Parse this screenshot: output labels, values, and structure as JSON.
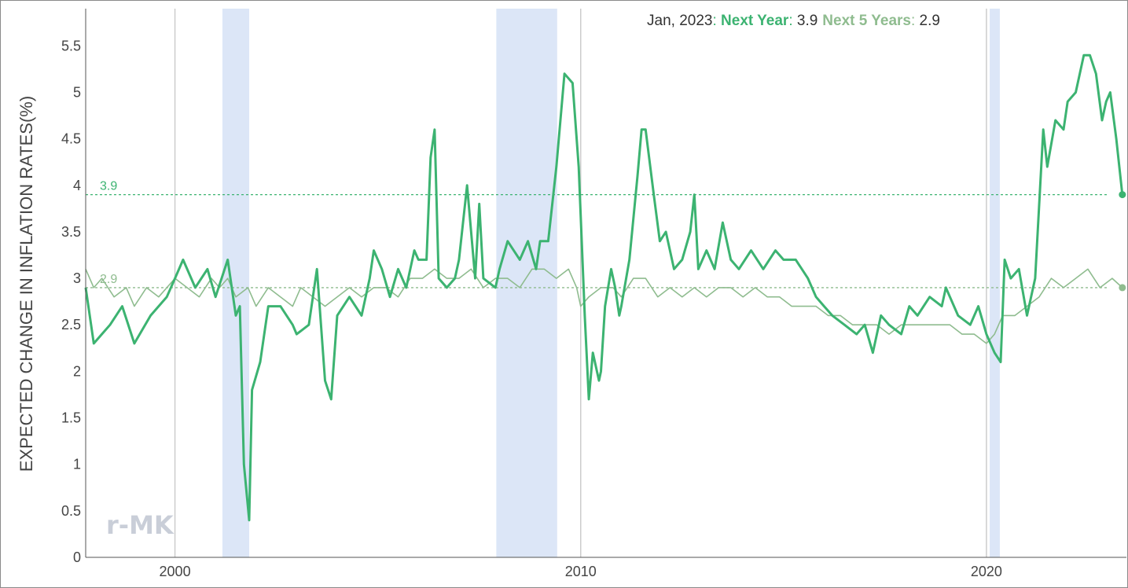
{
  "chart_data": {
    "type": "line",
    "ylabel": "EXPECTED CHANGE IN INFLATION RATES(%)",
    "ylim": [
      0,
      5.9
    ],
    "yticks": [
      "0",
      "0.5",
      "1",
      "1.5",
      "2",
      "2.5",
      "3",
      "3.5",
      "4",
      "4.5",
      "5",
      "5.5"
    ],
    "xlim": [
      1997.8,
      2023.45
    ],
    "xticks": [
      {
        "value": 2000,
        "label": "2000"
      },
      {
        "value": 2010,
        "label": "2010"
      },
      {
        "value": 2020,
        "label": "2020"
      }
    ],
    "recessions": [
      [
        2001.17,
        2001.83
      ],
      [
        2007.92,
        2009.42
      ],
      [
        2020.08,
        2020.33
      ]
    ],
    "header": {
      "date": "Jan, 2023",
      "sep1": ": ",
      "s1_name": "Next Year",
      "s1_sep": ": ",
      "s1_value": "3.9",
      "s2_name": "Next 5 Years",
      "s2_sep": ": ",
      "s2_value": "2.9"
    },
    "reference_lines": [
      {
        "value": 3.9,
        "label": "3.9",
        "color": "#3cb371"
      },
      {
        "value": 2.9,
        "label": "2.9",
        "color": "#8fbc8f"
      }
    ],
    "series": [
      {
        "name": "Next Year",
        "color": "#3cb371",
        "points": [
          [
            1997.8,
            2.9
          ],
          [
            1998.0,
            2.3
          ],
          [
            1998.4,
            2.5
          ],
          [
            1998.7,
            2.7
          ],
          [
            1999.0,
            2.3
          ],
          [
            1999.4,
            2.6
          ],
          [
            1999.8,
            2.8
          ],
          [
            2000.0,
            3.0
          ],
          [
            2000.2,
            3.2
          ],
          [
            2000.5,
            2.9
          ],
          [
            2000.8,
            3.1
          ],
          [
            2001.0,
            2.8
          ],
          [
            2001.3,
            3.2
          ],
          [
            2001.5,
            2.6
          ],
          [
            2001.6,
            2.7
          ],
          [
            2001.7,
            1.0
          ],
          [
            2001.83,
            0.4
          ],
          [
            2001.9,
            1.8
          ],
          [
            2002.1,
            2.1
          ],
          [
            2002.3,
            2.7
          ],
          [
            2002.6,
            2.7
          ],
          [
            2002.9,
            2.5
          ],
          [
            2003.0,
            2.4
          ],
          [
            2003.3,
            2.5
          ],
          [
            2003.5,
            3.1
          ],
          [
            2003.7,
            1.9
          ],
          [
            2003.85,
            1.7
          ],
          [
            2004.0,
            2.6
          ],
          [
            2004.3,
            2.8
          ],
          [
            2004.6,
            2.6
          ],
          [
            2004.8,
            3.0
          ],
          [
            2004.9,
            3.3
          ],
          [
            2005.1,
            3.1
          ],
          [
            2005.3,
            2.8
          ],
          [
            2005.5,
            3.1
          ],
          [
            2005.7,
            2.9
          ],
          [
            2005.9,
            3.3
          ],
          [
            2006.0,
            3.2
          ],
          [
            2006.2,
            3.2
          ],
          [
            2006.3,
            4.3
          ],
          [
            2006.4,
            4.6
          ],
          [
            2006.5,
            3.0
          ],
          [
            2006.7,
            2.9
          ],
          [
            2006.9,
            3.0
          ],
          [
            2007.0,
            3.2
          ],
          [
            2007.2,
            4.0
          ],
          [
            2007.4,
            3.0
          ],
          [
            2007.5,
            3.8
          ],
          [
            2007.6,
            3.0
          ],
          [
            2007.9,
            2.9
          ],
          [
            2008.0,
            3.1
          ],
          [
            2008.2,
            3.4
          ],
          [
            2008.5,
            3.2
          ],
          [
            2008.7,
            3.4
          ],
          [
            2008.9,
            3.1
          ],
          [
            2009.0,
            3.4
          ],
          [
            2009.2,
            3.4
          ],
          [
            2009.4,
            4.2
          ],
          [
            2009.6,
            5.2
          ],
          [
            2009.8,
            5.1
          ],
          [
            2009.95,
            4.2
          ],
          [
            2010.1,
            2.6
          ],
          [
            2010.2,
            1.7
          ],
          [
            2010.3,
            2.2
          ],
          [
            2010.45,
            1.9
          ],
          [
            2010.5,
            2.0
          ],
          [
            2010.6,
            2.7
          ],
          [
            2010.75,
            3.1
          ],
          [
            2010.85,
            2.9
          ],
          [
            2010.95,
            2.6
          ],
          [
            2011.0,
            2.7
          ],
          [
            2011.2,
            3.2
          ],
          [
            2011.4,
            4.1
          ],
          [
            2011.5,
            4.6
          ],
          [
            2011.6,
            4.6
          ],
          [
            2011.8,
            3.9
          ],
          [
            2011.95,
            3.4
          ],
          [
            2012.1,
            3.5
          ],
          [
            2012.3,
            3.1
          ],
          [
            2012.5,
            3.2
          ],
          [
            2012.7,
            3.5
          ],
          [
            2012.8,
            3.9
          ],
          [
            2012.9,
            3.1
          ],
          [
            2013.1,
            3.3
          ],
          [
            2013.3,
            3.1
          ],
          [
            2013.5,
            3.6
          ],
          [
            2013.7,
            3.2
          ],
          [
            2013.9,
            3.1
          ],
          [
            2014.2,
            3.3
          ],
          [
            2014.5,
            3.1
          ],
          [
            2014.8,
            3.3
          ],
          [
            2015.0,
            3.2
          ],
          [
            2015.3,
            3.2
          ],
          [
            2015.6,
            3.0
          ],
          [
            2015.8,
            2.8
          ],
          [
            2016.0,
            2.7
          ],
          [
            2016.2,
            2.6
          ],
          [
            2016.5,
            2.5
          ],
          [
            2016.8,
            2.4
          ],
          [
            2017.0,
            2.5
          ],
          [
            2017.2,
            2.2
          ],
          [
            2017.4,
            2.6
          ],
          [
            2017.6,
            2.5
          ],
          [
            2017.9,
            2.4
          ],
          [
            2018.1,
            2.7
          ],
          [
            2018.3,
            2.6
          ],
          [
            2018.6,
            2.8
          ],
          [
            2018.9,
            2.7
          ],
          [
            2019.0,
            2.9
          ],
          [
            2019.3,
            2.6
          ],
          [
            2019.6,
            2.5
          ],
          [
            2019.8,
            2.7
          ],
          [
            2020.0,
            2.4
          ],
          [
            2020.2,
            2.2
          ],
          [
            2020.35,
            2.1
          ],
          [
            2020.45,
            3.2
          ],
          [
            2020.6,
            3.0
          ],
          [
            2020.8,
            3.1
          ],
          [
            2021.0,
            2.6
          ],
          [
            2021.2,
            3.0
          ],
          [
            2021.4,
            4.6
          ],
          [
            2021.5,
            4.2
          ],
          [
            2021.7,
            4.7
          ],
          [
            2021.9,
            4.6
          ],
          [
            2022.0,
            4.9
          ],
          [
            2022.2,
            5.0
          ],
          [
            2022.4,
            5.4
          ],
          [
            2022.55,
            5.4
          ],
          [
            2022.7,
            5.2
          ],
          [
            2022.85,
            4.7
          ],
          [
            2022.95,
            4.9
          ],
          [
            2023.05,
            5.0
          ],
          [
            2023.2,
            4.5
          ],
          [
            2023.35,
            3.9
          ]
        ]
      },
      {
        "name": "Next 5 Years",
        "color": "#8fbc8f",
        "points": [
          [
            1997.8,
            3.1
          ],
          [
            1998.0,
            2.9
          ],
          [
            1998.2,
            3.0
          ],
          [
            1998.5,
            2.8
          ],
          [
            1998.8,
            2.9
          ],
          [
            1999.0,
            2.7
          ],
          [
            1999.3,
            2.9
          ],
          [
            1999.6,
            2.8
          ],
          [
            2000.0,
            3.0
          ],
          [
            2000.3,
            2.9
          ],
          [
            2000.6,
            2.8
          ],
          [
            2000.9,
            3.0
          ],
          [
            2001.1,
            2.9
          ],
          [
            2001.3,
            3.0
          ],
          [
            2001.5,
            2.8
          ],
          [
            2001.8,
            2.9
          ],
          [
            2002.0,
            2.7
          ],
          [
            2002.3,
            2.9
          ],
          [
            2002.6,
            2.8
          ],
          [
            2002.9,
            2.7
          ],
          [
            2003.1,
            2.9
          ],
          [
            2003.4,
            2.8
          ],
          [
            2003.7,
            2.7
          ],
          [
            2004.0,
            2.8
          ],
          [
            2004.3,
            2.9
          ],
          [
            2004.6,
            2.8
          ],
          [
            2004.9,
            2.9
          ],
          [
            2005.2,
            2.9
          ],
          [
            2005.5,
            2.8
          ],
          [
            2005.8,
            3.0
          ],
          [
            2006.1,
            3.0
          ],
          [
            2006.4,
            3.1
          ],
          [
            2006.7,
            3.0
          ],
          [
            2007.0,
            3.0
          ],
          [
            2007.3,
            3.1
          ],
          [
            2007.6,
            2.9
          ],
          [
            2007.9,
            3.0
          ],
          [
            2008.2,
            3.0
          ],
          [
            2008.5,
            2.9
          ],
          [
            2008.8,
            3.1
          ],
          [
            2009.1,
            3.1
          ],
          [
            2009.4,
            3.0
          ],
          [
            2009.7,
            3.1
          ],
          [
            2009.9,
            2.9
          ],
          [
            2010.0,
            2.7
          ],
          [
            2010.2,
            2.8
          ],
          [
            2010.5,
            2.9
          ],
          [
            2010.8,
            2.9
          ],
          [
            2011.0,
            2.8
          ],
          [
            2011.3,
            3.0
          ],
          [
            2011.6,
            3.0
          ],
          [
            2011.9,
            2.8
          ],
          [
            2012.2,
            2.9
          ],
          [
            2012.5,
            2.8
          ],
          [
            2012.8,
            2.9
          ],
          [
            2013.1,
            2.8
          ],
          [
            2013.4,
            2.9
          ],
          [
            2013.7,
            2.9
          ],
          [
            2014.0,
            2.8
          ],
          [
            2014.3,
            2.9
          ],
          [
            2014.6,
            2.8
          ],
          [
            2014.9,
            2.8
          ],
          [
            2015.2,
            2.7
          ],
          [
            2015.5,
            2.7
          ],
          [
            2015.8,
            2.7
          ],
          [
            2016.1,
            2.6
          ],
          [
            2016.4,
            2.6
          ],
          [
            2016.7,
            2.5
          ],
          [
            2017.0,
            2.5
          ],
          [
            2017.3,
            2.5
          ],
          [
            2017.6,
            2.4
          ],
          [
            2017.9,
            2.5
          ],
          [
            2018.2,
            2.5
          ],
          [
            2018.5,
            2.5
          ],
          [
            2018.8,
            2.5
          ],
          [
            2019.1,
            2.5
          ],
          [
            2019.4,
            2.4
          ],
          [
            2019.7,
            2.4
          ],
          [
            2020.0,
            2.3
          ],
          [
            2020.2,
            2.4
          ],
          [
            2020.4,
            2.6
          ],
          [
            2020.7,
            2.6
          ],
          [
            2021.0,
            2.7
          ],
          [
            2021.3,
            2.8
          ],
          [
            2021.6,
            3.0
          ],
          [
            2021.9,
            2.9
          ],
          [
            2022.2,
            3.0
          ],
          [
            2022.5,
            3.1
          ],
          [
            2022.8,
            2.9
          ],
          [
            2023.1,
            3.0
          ],
          [
            2023.35,
            2.9
          ]
        ]
      }
    ]
  },
  "watermark": "r-MK"
}
